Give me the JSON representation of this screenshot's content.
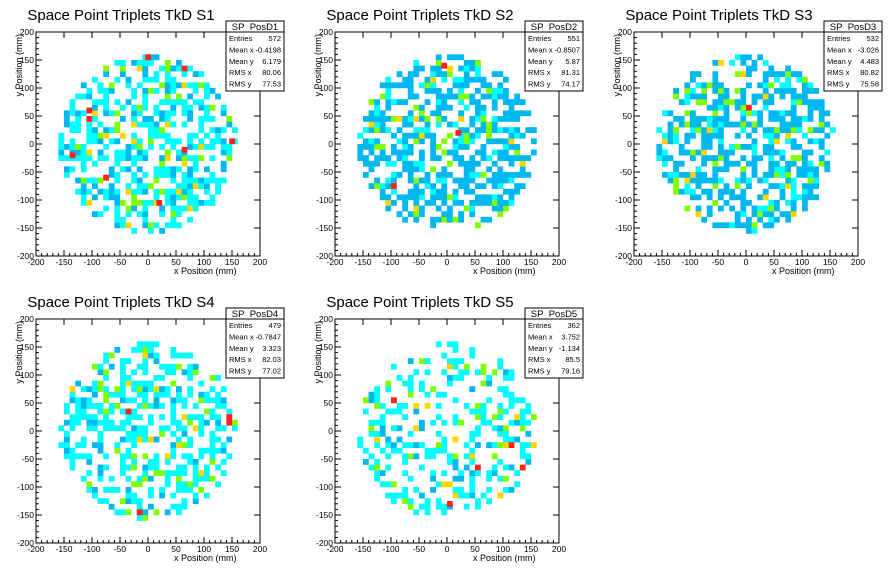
{
  "chart_data": [
    {
      "type": "heatmap",
      "title": "Space Point Triplets TkD S1",
      "xlabel": "x Position (mm)",
      "ylabel": "y Position (mm)",
      "xlim": [
        -200,
        200
      ],
      "ylim": [
        -200,
        200
      ],
      "xticks": [
        "-200",
        "-150",
        "-100",
        "-50",
        "0",
        "50",
        "100",
        "150",
        "200"
      ],
      "yticks": [
        "-200",
        "-150",
        "-100",
        "-50",
        "0",
        "50",
        "100",
        "150",
        "200"
      ],
      "stats": {
        "name": "SP_PosD1",
        "rows": [
          [
            "Entries",
            "572"
          ],
          [
            "Mean x",
            "-0.4198"
          ],
          [
            "Mean y",
            "6.179"
          ],
          [
            "RMS x",
            "80.06"
          ],
          [
            "RMS y",
            "77.53"
          ]
        ]
      },
      "colors": [
        "#00ffff",
        "#00b8f0",
        "#80ff00",
        "#ffd500",
        "#ff2020"
      ],
      "bin_size": 10,
      "seed": 11,
      "fill": 0.52,
      "light": 0.72,
      "hot": [
        [
          0,
          155
        ],
        [
          65,
          135
        ],
        [
          -105,
          60
        ],
        [
          -105,
          45
        ],
        [
          150,
          5
        ],
        [
          65,
          -10
        ],
        [
          -135,
          -20
        ],
        [
          -75,
          -60
        ],
        [
          20,
          -105
        ]
      ]
    },
    {
      "type": "heatmap",
      "title": "Space Point Triplets TkD S2",
      "xlabel": "x Position (mm)",
      "ylabel": "y Position (mm)",
      "xlim": [
        -200,
        200
      ],
      "ylim": [
        -200,
        200
      ],
      "xticks": [
        "-200",
        "-150",
        "-100",
        "-50",
        "0",
        "50",
        "100",
        "150",
        "200"
      ],
      "yticks": [
        "-200",
        "-150",
        "-100",
        "-50",
        "0",
        "50",
        "100",
        "150",
        "200"
      ],
      "stats": {
        "name": "SP_PosD2",
        "rows": [
          [
            "Entries",
            "551"
          ],
          [
            "Mean x",
            "-0.8507"
          ],
          [
            "Mean y",
            "5.87"
          ],
          [
            "RMS x",
            "81.31"
          ],
          [
            "RMS y",
            "74.17"
          ]
        ]
      },
      "colors": [
        "#00ffff",
        "#00b8f0",
        "#80ff00",
        "#ffd500",
        "#ff2020"
      ],
      "bin_size": 10,
      "seed": 23,
      "fill": 0.58,
      "light": 0.18,
      "hot": [
        [
          -5,
          140
        ],
        [
          20,
          20
        ],
        [
          -95,
          -75
        ]
      ]
    },
    {
      "type": "heatmap",
      "title": "Space Point Triplets TkD S3",
      "xlabel": "x Position (mm)",
      "ylabel": "y Position (mm)",
      "xlim": [
        -200,
        200
      ],
      "ylim": [
        -200,
        200
      ],
      "xticks": [
        "-200",
        "-150",
        "-100",
        "-50",
        "0",
        "50",
        "100",
        "150",
        "200"
      ],
      "yticks": [
        "-200",
        "-150",
        "-100",
        "-50",
        "0",
        "50",
        "100",
        "150",
        "200"
      ],
      "stats": {
        "name": "SP_PosD3",
        "rows": [
          [
            "Entries",
            "532"
          ],
          [
            "Mean x",
            "-3.026"
          ],
          [
            "Mean y",
            "4.483"
          ],
          [
            "RMS x",
            "80.82"
          ],
          [
            "RMS y",
            "75.58"
          ]
        ]
      },
      "colors": [
        "#00ffff",
        "#00b8f0",
        "#80ff00",
        "#ffd500",
        "#ff2020"
      ],
      "bin_size": 10,
      "seed": 37,
      "fill": 0.56,
      "light": 0.22,
      "hot": [
        [
          5,
          65
        ]
      ]
    },
    {
      "type": "heatmap",
      "title": "Space Point Triplets TkD S4",
      "xlabel": "x Position (mm)",
      "ylabel": "y Position (mm)",
      "xlim": [
        -200,
        200
      ],
      "ylim": [
        -200,
        200
      ],
      "xticks": [
        "-200",
        "-150",
        "-100",
        "-50",
        "0",
        "50",
        "100",
        "150",
        "200"
      ],
      "yticks": [
        "-200",
        "-150",
        "-100",
        "-50",
        "0",
        "50",
        "100",
        "150",
        "200"
      ],
      "stats": {
        "name": "SP_PosD4",
        "rows": [
          [
            "Entries",
            "479"
          ],
          [
            "Mean x",
            "-0.7847"
          ],
          [
            "Mean y",
            "3.323"
          ],
          [
            "RMS x",
            "82.03"
          ],
          [
            "RMS y",
            "77.02"
          ]
        ]
      },
      "colors": [
        "#00ffff",
        "#00b8f0",
        "#80ff00",
        "#ffd500",
        "#ff2020"
      ],
      "bin_size": 10,
      "seed": 53,
      "fill": 0.46,
      "light": 0.8,
      "hot": [
        [
          -35,
          35
        ],
        [
          145,
          25
        ],
        [
          145,
          15
        ],
        [
          -15,
          -145
        ]
      ]
    },
    {
      "type": "heatmap",
      "title": "Space Point Triplets TkD S5",
      "xlabel": "x Position (mm)",
      "ylabel": "y Position (mm)",
      "xlim": [
        -200,
        200
      ],
      "ylim": [
        -200,
        200
      ],
      "xticks": [
        "-200",
        "-150",
        "-100",
        "-50",
        "0",
        "50",
        "100",
        "150",
        "200"
      ],
      "yticks": [
        "-200",
        "-150",
        "-100",
        "-50",
        "0",
        "50",
        "100",
        "150",
        "200"
      ],
      "stats": {
        "name": "SP_PosD5",
        "rows": [
          [
            "Entries",
            "362"
          ],
          [
            "Mean x",
            "3.752"
          ],
          [
            "Mean y",
            "-1.134"
          ],
          [
            "RMS x",
            "85.5"
          ],
          [
            "RMS y",
            "79.16"
          ]
        ]
      },
      "colors": [
        "#00ffff",
        "#00b8f0",
        "#80ff00",
        "#ffd500",
        "#ff2020"
      ],
      "bin_size": 10,
      "seed": 71,
      "fill": 0.34,
      "light": 0.85,
      "hot": [
        [
          -95,
          55
        ],
        [
          115,
          -25
        ],
        [
          55,
          -65
        ],
        [
          135,
          -65
        ],
        [
          5,
          -130
        ]
      ]
    }
  ]
}
